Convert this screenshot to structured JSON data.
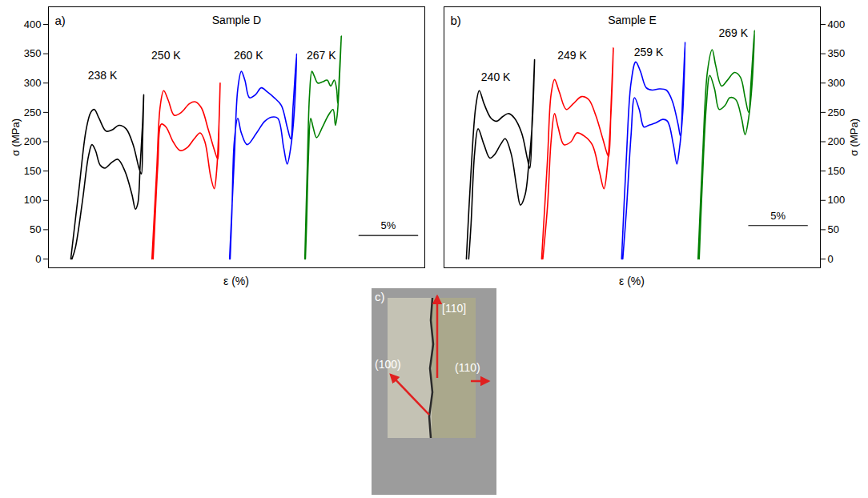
{
  "chart_data": [
    {
      "type": "line",
      "title": "Sample D",
      "panel_label": "a)",
      "xlabel": "ε (%)",
      "ylabel": "σ (MPa)",
      "xlim": [
        0,
        32
      ],
      "xticks": [],
      "ylim": [
        -15,
        430
      ],
      "yticks": [
        0,
        50,
        100,
        150,
        200,
        250,
        300,
        350,
        400
      ],
      "tick_labels": "y",
      "series": [
        {
          "name": "238 K",
          "color": "#000000",
          "x": [
            1.9,
            2.6,
            3.2,
            3.6,
            3.9,
            4.3,
            4.9,
            5.4,
            6.0,
            6.6,
            7.2,
            7.7,
            7.9,
            8.0,
            8.1,
            8.0,
            7.8,
            7.6,
            7.4,
            7.1,
            6.5,
            5.9,
            5.4,
            4.8,
            4.4,
            4.0,
            3.7,
            3.4,
            2.9,
            2.3,
            2.0
          ],
          "y": [
            0,
            120,
            220,
            250,
            255,
            240,
            218,
            220,
            228,
            222,
            195,
            155,
            145,
            200,
            280,
            230,
            160,
            95,
            85,
            110,
            150,
            170,
            165,
            155,
            160,
            185,
            195,
            175,
            100,
            20,
            0
          ]
        },
        {
          "name": "250 K",
          "color": "#ff0000",
          "x": [
            8.8,
            9.2,
            9.5,
            9.8,
            10.2,
            10.7,
            11.3,
            12.0,
            12.5,
            13.0,
            13.6,
            14.2,
            14.4,
            14.5,
            14.6,
            14.5,
            14.3,
            14.1,
            13.8,
            13.3,
            12.9,
            12.4,
            11.8,
            11.2,
            10.6,
            10.0,
            9.6,
            9.3,
            9.0,
            8.9
          ],
          "y": [
            0,
            150,
            260,
            287,
            270,
            245,
            250,
            265,
            268,
            258,
            220,
            180,
            170,
            230,
            300,
            230,
            150,
            120,
            140,
            200,
            215,
            205,
            190,
            185,
            200,
            225,
            230,
            160,
            40,
            0
          ]
        },
        {
          "name": "260 K",
          "color": "#0000ff",
          "x": [
            15.4,
            15.8,
            16.1,
            16.4,
            16.7,
            17.1,
            17.6,
            18.1,
            18.6,
            19.2,
            19.8,
            20.3,
            20.6,
            20.8,
            21.1,
            20.9,
            20.6,
            20.3,
            20.0,
            19.5,
            19.0,
            18.4,
            17.7,
            16.9,
            16.4,
            16.1,
            15.8,
            15.6,
            15.45
          ],
          "y": [
            0,
            170,
            290,
            320,
            305,
            275,
            280,
            292,
            285,
            275,
            262,
            225,
            205,
            260,
            350,
            250,
            190,
            162,
            190,
            240,
            242,
            235,
            215,
            195,
            215,
            240,
            200,
            80,
            0
          ]
        },
        {
          "name": "267 K",
          "color": "#008000",
          "x": [
            21.8,
            22.0,
            22.2,
            22.4,
            22.6,
            22.9,
            23.3,
            23.7,
            24.0,
            24.3,
            24.5,
            24.6,
            24.75,
            24.9,
            24.7,
            24.55,
            24.4,
            24.2,
            23.8,
            23.3,
            22.8,
            22.5,
            22.3,
            22.1,
            21.95,
            21.85
          ],
          "y": [
            0,
            150,
            280,
            320,
            312,
            300,
            302,
            305,
            295,
            305,
            290,
            265,
            320,
            380,
            290,
            245,
            228,
            255,
            245,
            225,
            207,
            225,
            240,
            170,
            60,
            0
          ]
        }
      ],
      "annotations": [
        {
          "text": "238 K",
          "x": 4.6,
          "y": 312
        },
        {
          "text": "250 K",
          "x": 10.0,
          "y": 347
        },
        {
          "text": "260 K",
          "x": 17.0,
          "y": 347
        },
        {
          "text": "267 K",
          "x": 23.2,
          "y": 347
        }
      ],
      "scale_bar": {
        "x": [
          26.4,
          31.4
        ],
        "y": 40,
        "label": "5%"
      }
    },
    {
      "type": "line",
      "title": "Sample E",
      "panel_label": "b)",
      "xlabel": "ε (%)",
      "y2label": "σ (MPa)",
      "xlim": [
        0,
        32
      ],
      "xticks": [],
      "y2lim": [
        -15,
        430
      ],
      "y2ticks": [
        0,
        50,
        100,
        150,
        200,
        250,
        300,
        350,
        400
      ],
      "tick_labels": "y",
      "series": [
        {
          "name": "240 K",
          "color": "#000000",
          "axis": "y2",
          "x": [
            1.9,
            2.3,
            2.7,
            3.0,
            3.4,
            4.0,
            4.5,
            5.0,
            5.5,
            6.0,
            6.6,
            7.1,
            7.3,
            7.5,
            7.7,
            7.5,
            7.2,
            6.9,
            6.5,
            6.2,
            5.7,
            5.2,
            4.8,
            4.3,
            3.9,
            3.4,
            2.9,
            2.6,
            2.3,
            2.1
          ],
          "y": [
            0,
            150,
            260,
            287,
            265,
            240,
            235,
            243,
            248,
            240,
            215,
            170,
            155,
            240,
            340,
            230,
            160,
            110,
            92,
            120,
            180,
            205,
            195,
            178,
            172,
            195,
            222,
            180,
            60,
            0
          ]
        },
        {
          "name": "249 K",
          "color": "#ff0000",
          "axis": "y2",
          "x": [
            8.3,
            8.8,
            9.1,
            9.4,
            9.8,
            10.4,
            11.0,
            11.7,
            12.3,
            12.9,
            13.5,
            13.9,
            14.0,
            14.2,
            14.4,
            14.2,
            13.9,
            13.6,
            13.2,
            12.6,
            11.9,
            11.3,
            10.8,
            10.2,
            9.7,
            9.4,
            9.1,
            8.8,
            8.4
          ],
          "y": [
            0,
            170,
            280,
            306,
            285,
            255,
            265,
            277,
            272,
            245,
            205,
            178,
            175,
            260,
            360,
            250,
            160,
            120,
            150,
            195,
            210,
            215,
            200,
            195,
            225,
            248,
            200,
            90,
            0
          ]
        },
        {
          "name": "259 K",
          "color": "#0000ff",
          "axis": "y2",
          "x": [
            15.1,
            15.5,
            15.9,
            16.3,
            16.7,
            17.2,
            17.7,
            18.3,
            18.9,
            19.4,
            19.9,
            20.1,
            20.3,
            20.5,
            20.3,
            20.0,
            19.8,
            19.5,
            19.0,
            18.6,
            18.0,
            17.4,
            17.0,
            16.6,
            16.2,
            15.9,
            15.5,
            15.2
          ],
          "y": [
            0,
            170,
            300,
            336,
            320,
            292,
            288,
            290,
            288,
            270,
            230,
            210,
            280,
            370,
            250,
            185,
            162,
            195,
            235,
            238,
            232,
            228,
            225,
            255,
            275,
            210,
            80,
            0
          ]
        },
        {
          "name": "269 K",
          "color": "#008000",
          "axis": "y2",
          "x": [
            21.6,
            22.0,
            22.4,
            22.8,
            23.1,
            23.6,
            24.1,
            24.7,
            25.2,
            25.6,
            25.9,
            26.1,
            26.4,
            26.2,
            25.9,
            25.6,
            25.3,
            24.8,
            24.3,
            23.9,
            23.4,
            23.0,
            22.6,
            22.3,
            21.9,
            21.7
          ],
          "y": [
            0,
            180,
            320,
            357,
            330,
            295,
            305,
            318,
            310,
            275,
            250,
            300,
            390,
            300,
            240,
            212,
            240,
            272,
            275,
            262,
            255,
            290,
            313,
            260,
            100,
            0
          ]
        }
      ],
      "annotations": [
        {
          "text": "240 K",
          "x": 4.4,
          "y": 310
        },
        {
          "text": "249 K",
          "x": 10.9,
          "y": 347
        },
        {
          "text": "259 K",
          "x": 17.4,
          "y": 352
        },
        {
          "text": "269 K",
          "x": 24.6,
          "y": 385
        }
      ],
      "scale_bar": {
        "x": [
          25.9,
          30.9
        ],
        "y": 57,
        "label": "5%"
      }
    }
  ],
  "photo": {
    "panel_label": "c)",
    "labels": [
      "(100)",
      "[110]",
      "(110)"
    ]
  }
}
